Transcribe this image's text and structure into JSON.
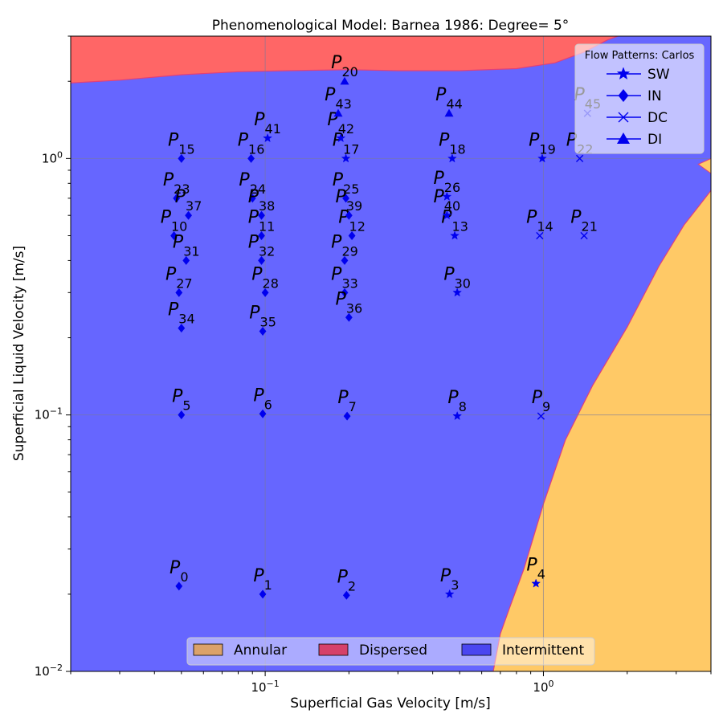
{
  "chart_data": {
    "type": "scatter",
    "title": "Phenomenological Model: Barnea 1986: Degree= 5°",
    "xlabel": "Superficial Gas Velocity [m/s]",
    "ylabel": "Superficial Liquid Velocity [m/s]",
    "xscale": "log",
    "yscale": "log",
    "xlim": [
      0.02,
      4.0
    ],
    "ylim": [
      0.01,
      3.0
    ],
    "xticks": [
      {
        "value": 0.1,
        "base": "10",
        "exp": "−1"
      },
      {
        "value": 1,
        "base": "10",
        "exp": "0"
      }
    ],
    "yticks": [
      {
        "value": 0.01,
        "base": "10",
        "exp": "−2"
      },
      {
        "value": 0.1,
        "base": "10",
        "exp": "−1"
      },
      {
        "value": 1,
        "base": "10",
        "exp": "0"
      }
    ],
    "grid": true,
    "region_legend": {
      "placement": "bottom-center",
      "entries": [
        {
          "name": "Annular",
          "color": "#dba26a"
        },
        {
          "name": "Dispersed",
          "color": "#d6416a"
        },
        {
          "name": "Intermittent",
          "color": "#4a46f0"
        }
      ]
    },
    "regions": {
      "dispersed_color": "#ff6666",
      "intermittent_color": "#6666ff",
      "annular_color": "#ffc966",
      "boundary_color": "#e0407a",
      "dispersed_intermittent_boundary": [
        [
          0.02,
          1.97
        ],
        [
          0.03,
          2.02
        ],
        [
          0.05,
          2.12
        ],
        [
          0.08,
          2.18
        ],
        [
          0.12,
          2.2
        ],
        [
          0.2,
          2.22
        ],
        [
          0.3,
          2.2
        ],
        [
          0.5,
          2.2
        ],
        [
          0.8,
          2.24
        ],
        [
          1.1,
          2.36
        ],
        [
          1.4,
          2.6
        ],
        [
          1.7,
          2.9
        ],
        [
          1.85,
          3.0
        ]
      ],
      "intermittent_annular_boundary": [
        [
          0.66,
          0.01
        ],
        [
          0.7,
          0.014
        ],
        [
          0.76,
          0.018
        ],
        [
          0.85,
          0.025
        ],
        [
          1.0,
          0.045
        ],
        [
          1.2,
          0.08
        ],
        [
          1.5,
          0.13
        ],
        [
          2.0,
          0.22
        ],
        [
          2.6,
          0.38
        ],
        [
          3.2,
          0.55
        ],
        [
          4.0,
          0.75
        ]
      ],
      "upper_right_boundary": [
        [
          3.6,
          0.95
        ],
        [
          4.0,
          1.0
        ]
      ]
    },
    "marker_legend": {
      "title": "Flow Patterns: Carlos",
      "placement": "top-right",
      "entries": [
        {
          "name": "SW",
          "marker": "star"
        },
        {
          "name": "IN",
          "marker": "diamond"
        },
        {
          "name": "DC",
          "marker": "x"
        },
        {
          "name": "DI",
          "marker": "triangle"
        }
      ]
    },
    "marker_color": "#0000ee",
    "points": [
      {
        "id": "0",
        "x": 0.049,
        "y": 0.0215,
        "pattern": "IN"
      },
      {
        "id": "1",
        "x": 0.098,
        "y": 0.02,
        "pattern": "IN"
      },
      {
        "id": "2",
        "x": 0.196,
        "y": 0.0198,
        "pattern": "IN"
      },
      {
        "id": "3",
        "x": 0.46,
        "y": 0.02,
        "pattern": "SW"
      },
      {
        "id": "4",
        "x": 0.94,
        "y": 0.022,
        "pattern": "SW"
      },
      {
        "id": "5",
        "x": 0.05,
        "y": 0.1,
        "pattern": "IN"
      },
      {
        "id": "6",
        "x": 0.098,
        "y": 0.101,
        "pattern": "IN"
      },
      {
        "id": "7",
        "x": 0.197,
        "y": 0.099,
        "pattern": "IN"
      },
      {
        "id": "8",
        "x": 0.49,
        "y": 0.099,
        "pattern": "SW"
      },
      {
        "id": "9",
        "x": 0.98,
        "y": 0.099,
        "pattern": "DC"
      },
      {
        "id": "10",
        "x": 0.047,
        "y": 0.5,
        "pattern": "IN"
      },
      {
        "id": "11",
        "x": 0.097,
        "y": 0.5,
        "pattern": "IN"
      },
      {
        "id": "12",
        "x": 0.205,
        "y": 0.5,
        "pattern": "IN"
      },
      {
        "id": "13",
        "x": 0.48,
        "y": 0.5,
        "pattern": "SW"
      },
      {
        "id": "14",
        "x": 0.97,
        "y": 0.5,
        "pattern": "DC"
      },
      {
        "id": "15",
        "x": 0.05,
        "y": 1.0,
        "pattern": "IN"
      },
      {
        "id": "16",
        "x": 0.089,
        "y": 1.0,
        "pattern": "IN"
      },
      {
        "id": "17",
        "x": 0.195,
        "y": 1.0,
        "pattern": "SW"
      },
      {
        "id": "18",
        "x": 0.47,
        "y": 1.0,
        "pattern": "SW"
      },
      {
        "id": "19",
        "x": 0.99,
        "y": 1.0,
        "pattern": "SW"
      },
      {
        "id": "20",
        "x": 0.193,
        "y": 2.0,
        "pattern": "DI"
      },
      {
        "id": "21",
        "x": 1.4,
        "y": 0.5,
        "pattern": "DC"
      },
      {
        "id": "22",
        "x": 1.35,
        "y": 1.0,
        "pattern": "DC"
      },
      {
        "id": "23",
        "x": 0.048,
        "y": 0.7,
        "pattern": "IN"
      },
      {
        "id": "24",
        "x": 0.09,
        "y": 0.7,
        "pattern": "IN"
      },
      {
        "id": "25",
        "x": 0.195,
        "y": 0.7,
        "pattern": "IN"
      },
      {
        "id": "26",
        "x": 0.45,
        "y": 0.71,
        "pattern": "SW"
      },
      {
        "id": "27",
        "x": 0.049,
        "y": 0.3,
        "pattern": "IN"
      },
      {
        "id": "28",
        "x": 0.1,
        "y": 0.3,
        "pattern": "IN"
      },
      {
        "id": "29",
        "x": 0.193,
        "y": 0.4,
        "pattern": "IN"
      },
      {
        "id": "30",
        "x": 0.49,
        "y": 0.3,
        "pattern": "SW"
      },
      {
        "id": "31",
        "x": 0.052,
        "y": 0.4,
        "pattern": "IN"
      },
      {
        "id": "32",
        "x": 0.097,
        "y": 0.4,
        "pattern": "IN"
      },
      {
        "id": "33",
        "x": 0.193,
        "y": 0.3,
        "pattern": "IN"
      },
      {
        "id": "34",
        "x": 0.05,
        "y": 0.218,
        "pattern": "IN"
      },
      {
        "id": "35",
        "x": 0.098,
        "y": 0.212,
        "pattern": "IN"
      },
      {
        "id": "36",
        "x": 0.2,
        "y": 0.24,
        "pattern": "IN"
      },
      {
        "id": "37",
        "x": 0.053,
        "y": 0.6,
        "pattern": "IN"
      },
      {
        "id": "38",
        "x": 0.097,
        "y": 0.6,
        "pattern": "IN"
      },
      {
        "id": "39",
        "x": 0.2,
        "y": 0.6,
        "pattern": "IN"
      },
      {
        "id": "40",
        "x": 0.45,
        "y": 0.6,
        "pattern": "SW"
      },
      {
        "id": "41",
        "x": 0.102,
        "y": 1.2,
        "pattern": "SW"
      },
      {
        "id": "42",
        "x": 0.187,
        "y": 1.2,
        "pattern": "SW"
      },
      {
        "id": "43",
        "x": 0.183,
        "y": 1.5,
        "pattern": "DI"
      },
      {
        "id": "44",
        "x": 0.458,
        "y": 1.5,
        "pattern": "DI"
      },
      {
        "id": "45",
        "x": 1.44,
        "y": 1.5,
        "pattern": "DC"
      }
    ]
  }
}
